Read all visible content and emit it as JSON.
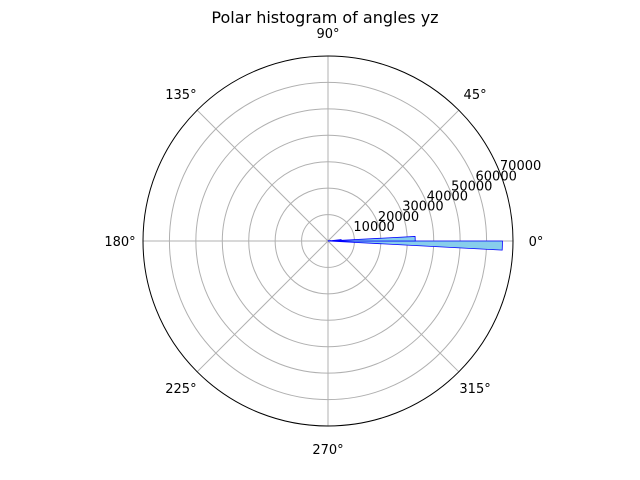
{
  "chart_data": {
    "type": "bar",
    "subtype": "polar-histogram",
    "title": "Polar histogram of angles yz",
    "angle_unit": "degrees",
    "angle_ticks": [
      "0°",
      "45°",
      "90°",
      "135°",
      "180°",
      "225°",
      "270°",
      "315°"
    ],
    "radial_ticks": [
      "10000",
      "20000",
      "30000",
      "40000",
      "50000",
      "60000",
      "70000"
    ],
    "rlim": [
      0,
      70000
    ],
    "grid": true,
    "bin_width_degrees": 3,
    "x": [
      -1.5,
      1.5,
      4.5,
      7.5,
      10.5,
      13.5,
      16.5,
      19.5,
      22.5,
      25.5,
      28.5
    ],
    "values": [
      66000,
      33000,
      5000,
      1000,
      400,
      200,
      150,
      100,
      80,
      60,
      50
    ],
    "colors": {
      "bar_fill": "#87ceeb",
      "bar_edge": "#0000ff",
      "grid": "#b0b0b0",
      "frame": "#000000"
    }
  }
}
